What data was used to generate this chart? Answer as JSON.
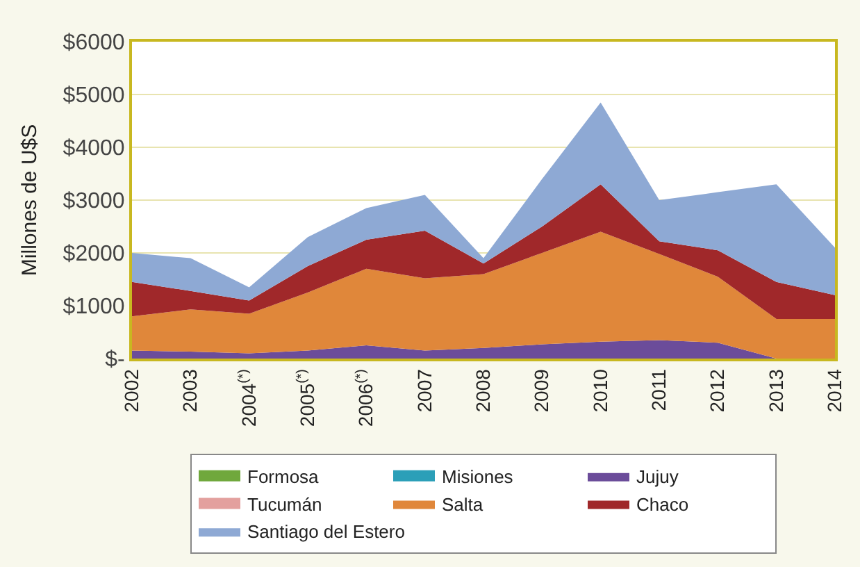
{
  "chart_data": {
    "type": "area",
    "stacked": true,
    "ylabel": "Millones de U$S",
    "categories": [
      "2002",
      "2003",
      "2004$^{(*)}$",
      "2005$^{(*)}$",
      "2006$^{(*)}$",
      "2007",
      "2008",
      "2009",
      "2010",
      "2011",
      "2012",
      "2013",
      "2014"
    ],
    "ylim": [
      0,
      6000
    ],
    "yticks": [
      {
        "value": 0,
        "label": "$-"
      },
      {
        "value": 1000,
        "label": "$1000"
      },
      {
        "value": 2000,
        "label": "$2000"
      },
      {
        "value": 3000,
        "label": "$3000"
      },
      {
        "value": 4000,
        "label": "$4000"
      },
      {
        "value": 5000,
        "label": "$5000"
      },
      {
        "value": 6000,
        "label": "$6000"
      }
    ],
    "grid": "y",
    "legend": "bottom",
    "series": [
      {
        "name": "Formosa",
        "color": "#70a83c",
        "values": [
          null,
          null,
          null,
          null,
          null,
          null,
          null,
          null,
          null,
          null,
          null,
          null,
          null
        ]
      },
      {
        "name": "Misiones",
        "color": "#2b9fb8",
        "values": [
          null,
          null,
          null,
          null,
          null,
          null,
          null,
          null,
          null,
          null,
          null,
          null,
          null
        ]
      },
      {
        "name": "Jujuy",
        "color": "#6b4c9a",
        "values": [
          150,
          130,
          100,
          150,
          250,
          150,
          200,
          270,
          320,
          350,
          300,
          0,
          0
        ]
      },
      {
        "name": "Tucumán",
        "color": "#e3a09e",
        "values": [
          null,
          null,
          null,
          null,
          null,
          null,
          null,
          null,
          null,
          null,
          null,
          null,
          null
        ]
      },
      {
        "name": "Salta",
        "color": "#e0873a",
        "values": [
          650,
          800,
          750,
          1100,
          1450,
          1370,
          1400,
          1730,
          2080,
          1630,
          1250,
          750,
          750
        ]
      },
      {
        "name": "Chaco",
        "color": "#a0282a",
        "values": [
          650,
          350,
          250,
          500,
          550,
          900,
          200,
          500,
          900,
          240,
          500,
          700,
          450
        ]
      },
      {
        "name": "Santiago del Estero",
        "color": "#8ea9d4",
        "values": [
          550,
          620,
          250,
          550,
          600,
          680,
          100,
          900,
          1550,
          780,
          1100,
          1850,
          900
        ]
      }
    ]
  }
}
